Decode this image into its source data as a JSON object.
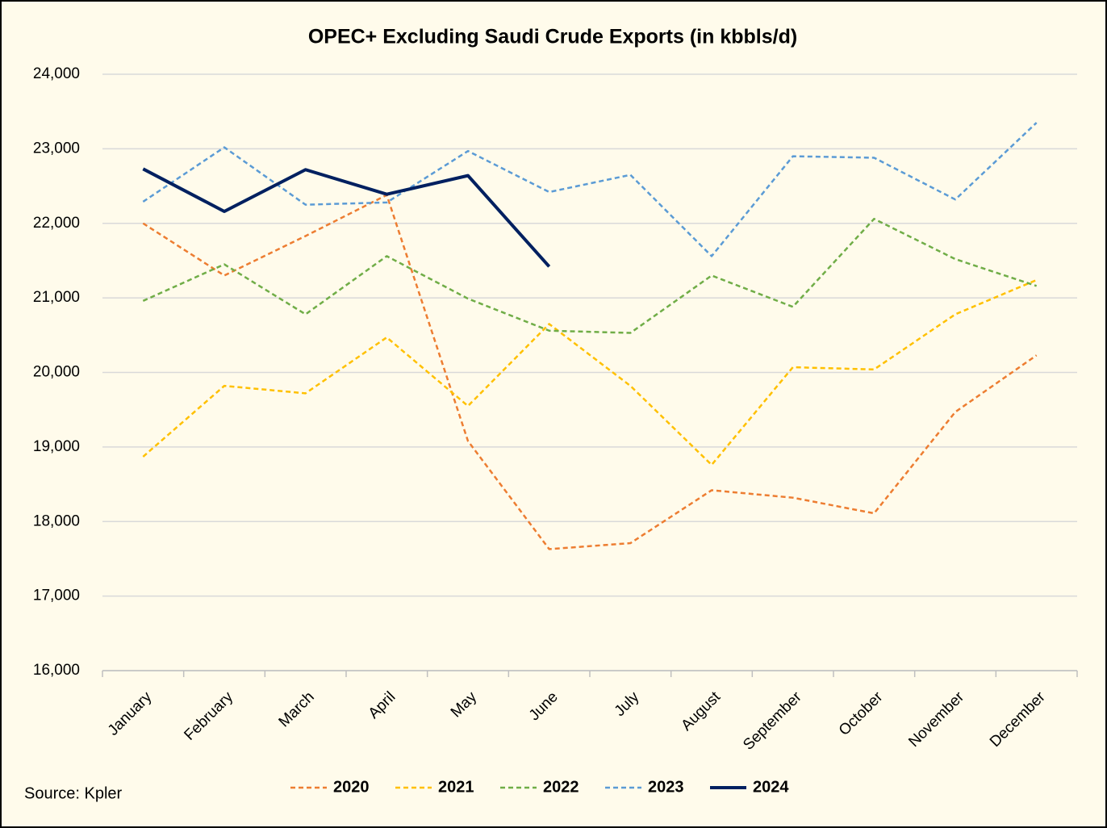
{
  "chart_data": {
    "type": "line",
    "title": "OPEC+ Excluding Saudi Crude Exports (in kbbls/d)",
    "source": "Source: Kpler",
    "categories": [
      "January",
      "February",
      "March",
      "April",
      "May",
      "June",
      "July",
      "August",
      "September",
      "October",
      "November",
      "December"
    ],
    "series": [
      {
        "name": "2020",
        "color": "#ed7d31",
        "dashed": true,
        "values": [
          22000,
          21300,
          21830,
          22380,
          19080,
          17630,
          17710,
          18420,
          18320,
          18110,
          19470,
          20230
        ]
      },
      {
        "name": "2021",
        "color": "#ffc000",
        "dashed": true,
        "values": [
          18870,
          19820,
          19720,
          20470,
          19550,
          20650,
          19820,
          18760,
          20070,
          20040,
          20780,
          21240
        ]
      },
      {
        "name": "2022",
        "color": "#70ad47",
        "dashed": true,
        "values": [
          20960,
          21450,
          20780,
          21560,
          20990,
          20560,
          20530,
          21300,
          20880,
          22060,
          21520,
          21160
        ]
      },
      {
        "name": "2023",
        "color": "#5b9bd5",
        "dashed": true,
        "values": [
          22290,
          23020,
          22250,
          22280,
          22970,
          22420,
          22650,
          21560,
          22900,
          22880,
          22320,
          23350
        ]
      },
      {
        "name": "2024",
        "color": "#002060",
        "dashed": false,
        "values": [
          22730,
          22160,
          22720,
          22390,
          22640,
          21420,
          null,
          null,
          null,
          null,
          null,
          null
        ]
      }
    ],
    "ylim": [
      16000,
      24000
    ],
    "yticks": [
      {
        "value": 16000,
        "label": "16,000"
      },
      {
        "value": 17000,
        "label": "17,000"
      },
      {
        "value": 18000,
        "label": "18,000"
      },
      {
        "value": 19000,
        "label": "19,000"
      },
      {
        "value": 20000,
        "label": "20,000"
      },
      {
        "value": 21000,
        "label": "21,000"
      },
      {
        "value": 22000,
        "label": "22,000"
      },
      {
        "value": 23000,
        "label": "23,000"
      },
      {
        "value": 24000,
        "label": "24,000"
      }
    ],
    "grid": true,
    "legend": "bottom"
  }
}
